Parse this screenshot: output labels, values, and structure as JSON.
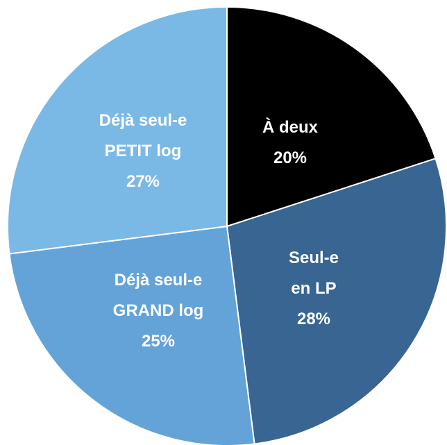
{
  "chart_data": {
    "type": "pie",
    "categories": [
      "À deux",
      "Seul-e\nen LP",
      "Déjà seul-e\nGRAND log",
      "Déjà seul-e\nPETIT log"
    ],
    "values": [
      20,
      28,
      25,
      27
    ],
    "value_labels": [
      "20%",
      "28%",
      "25%",
      "27%"
    ],
    "colors": [
      "#000000",
      "#386591",
      "#64a3d8",
      "#7ab9e6"
    ]
  }
}
